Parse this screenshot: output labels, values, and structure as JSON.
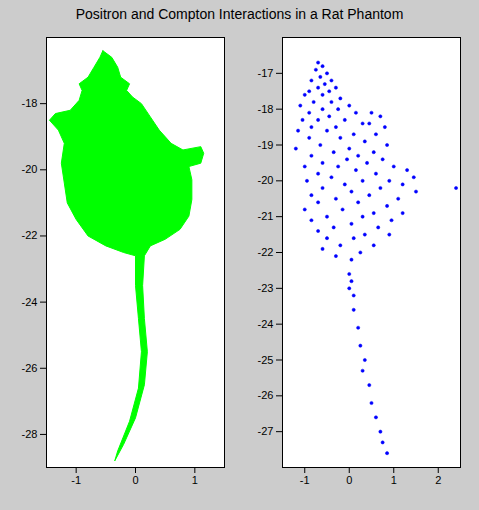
{
  "title": "Positron and Compton Interactions in a Rat Phantom",
  "chart_data": [
    {
      "type": "polygon",
      "color": "#00ff00",
      "xlim": [
        -1.5,
        1.5
      ],
      "xticks": [
        -1,
        0,
        1
      ],
      "ylim": [
        -29,
        -16
      ],
      "yticks": [
        -18,
        -20,
        -22,
        -24,
        -26,
        -28
      ],
      "x": [
        -0.55,
        -0.4,
        -0.3,
        -0.25,
        -0.1,
        -0.15,
        -0.05,
        0.1,
        0.25,
        0.4,
        0.6,
        0.8,
        1.1,
        1.15,
        1.1,
        0.9,
        0.95,
        0.95,
        0.9,
        0.75,
        0.5,
        0.25,
        0.15,
        0.12,
        0.15,
        0.2,
        0.15,
        0.0,
        -0.2,
        -0.35,
        -0.3,
        -0.1,
        0.05,
        0.1,
        0.05,
        0.0,
        0.0,
        -0.2,
        -0.5,
        -0.8,
        -1.0,
        -1.15,
        -1.2,
        -1.25,
        -1.2,
        -1.3,
        -1.45,
        -1.35,
        -1.1,
        -0.95,
        -0.9,
        -0.95,
        -0.8,
        -0.7,
        -0.6,
        -0.55
      ],
      "values": [
        -16.4,
        -16.6,
        -16.9,
        -17.2,
        -17.4,
        -17.6,
        -17.8,
        -18.0,
        -18.4,
        -18.8,
        -19.2,
        -19.4,
        -19.3,
        -19.5,
        -19.8,
        -19.9,
        -20.3,
        -20.9,
        -21.4,
        -21.8,
        -22.1,
        -22.3,
        -22.6,
        -23.5,
        -24.5,
        -25.5,
        -26.5,
        -27.5,
        -28.3,
        -28.8,
        -28.5,
        -27.6,
        -26.6,
        -25.5,
        -24.5,
        -23.5,
        -22.6,
        -22.5,
        -22.3,
        -22.0,
        -21.5,
        -21.0,
        -20.4,
        -19.8,
        -19.2,
        -18.8,
        -18.5,
        -18.3,
        -18.2,
        -17.9,
        -17.6,
        -17.4,
        -17.2,
        -16.9,
        -16.6,
        -16.4
      ]
    },
    {
      "type": "scatter",
      "color": "#0000ff",
      "marker": "dot",
      "xlim": [
        -1.5,
        2.5
      ],
      "xticks": [
        -1,
        0,
        1,
        2
      ],
      "ylim": [
        -28,
        -16
      ],
      "yticks": [
        -17,
        -18,
        -19,
        -20,
        -21,
        -22,
        -23,
        -24,
        -25,
        -26,
        -27
      ],
      "x": [
        -0.7,
        -0.6,
        -0.75,
        -0.5,
        -0.65,
        -0.85,
        -0.4,
        -0.55,
        -0.7,
        -0.3,
        -0.9,
        -0.45,
        -1.0,
        -0.6,
        -0.2,
        -0.8,
        -0.4,
        0.0,
        -1.1,
        -0.6,
        -0.25,
        -0.9,
        0.15,
        -0.45,
        -1.05,
        -0.1,
        -0.7,
        0.3,
        -0.3,
        -0.85,
        0.5,
        0.7,
        0.45,
        0.8,
        -1.15,
        -0.5,
        0.1,
        0.6,
        -0.9,
        -0.2,
        0.35,
        -0.65,
        0.85,
        -1.2,
        0.0,
        -0.35,
        0.55,
        -0.85,
        0.2,
        -0.05,
        0.75,
        -0.6,
        0.4,
        -1.0,
        -0.25,
        1.0,
        0.15,
        1.3,
        -0.7,
        0.6,
        1.45,
        -0.4,
        0.9,
        -0.95,
        0.3,
        1.2,
        -0.1,
        -0.6,
        0.7,
        2.4,
        1.5,
        0.05,
        -0.85,
        0.45,
        1.1,
        -0.3,
        -0.7,
        0.2,
        0.85,
        -1.0,
        -0.15,
        0.55,
        1.2,
        -0.5,
        0.3,
        -0.85,
        0.95,
        0.05,
        -0.35,
        0.65,
        -0.7,
        0.35,
        0.9,
        -0.5,
        0.1,
        -0.2,
        0.55,
        -0.6,
        0.25,
        -0.3,
        0.05,
        0.0,
        0.05,
        0.0,
        0.1,
        0.1,
        0.2,
        0.25,
        0.35,
        0.3,
        0.45,
        0.5,
        0.6,
        0.7,
        0.75,
        0.85
      ],
      "values": [
        -16.7,
        -16.8,
        -16.9,
        -17.0,
        -17.1,
        -17.2,
        -17.2,
        -17.3,
        -17.4,
        -17.4,
        -17.5,
        -17.5,
        -17.6,
        -17.6,
        -17.7,
        -17.8,
        -17.8,
        -17.9,
        -17.9,
        -18.0,
        -18.0,
        -18.1,
        -18.1,
        -18.2,
        -18.3,
        -18.3,
        -18.3,
        -18.4,
        -18.5,
        -18.5,
        -18.1,
        -18.2,
        -18.4,
        -18.5,
        -18.6,
        -18.6,
        -18.7,
        -18.7,
        -18.8,
        -18.8,
        -18.9,
        -19.0,
        -19.0,
        -19.1,
        -19.1,
        -19.2,
        -19.2,
        -19.3,
        -19.3,
        -19.4,
        -19.4,
        -19.5,
        -19.5,
        -19.6,
        -19.6,
        -19.6,
        -19.7,
        -19.7,
        -19.8,
        -19.8,
        -19.9,
        -19.9,
        -20.0,
        -20.0,
        -20.0,
        -20.1,
        -20.1,
        -20.2,
        -20.2,
        -20.2,
        -20.3,
        -20.3,
        -20.4,
        -20.4,
        -20.5,
        -20.5,
        -20.6,
        -20.6,
        -20.7,
        -20.8,
        -20.8,
        -20.9,
        -20.9,
        -21.0,
        -21.0,
        -21.1,
        -21.1,
        -21.2,
        -21.3,
        -21.3,
        -21.4,
        -21.5,
        -21.5,
        -21.6,
        -21.6,
        -21.8,
        -21.8,
        -21.9,
        -22.0,
        -22.1,
        -22.2,
        -22.6,
        -22.8,
        -23.0,
        -23.2,
        -23.6,
        -24.1,
        -24.6,
        -25.0,
        -25.3,
        -25.7,
        -26.2,
        -26.6,
        -27.0,
        -27.3,
        -27.6
      ]
    }
  ]
}
